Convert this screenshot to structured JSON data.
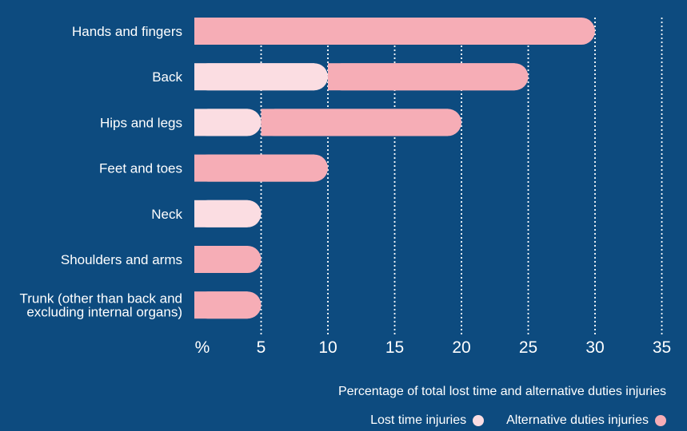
{
  "chart_data": {
    "type": "bar",
    "orientation": "horizontal",
    "stacked": true,
    "categories": [
      "Hands and fingers",
      "Back",
      "Hips and legs",
      "Feet and toes",
      "Neck",
      "Shoulders and arms",
      "Trunk (other than back and excluding internal organs)"
    ],
    "category_lines": [
      [
        "Hands and fingers"
      ],
      [
        "Back"
      ],
      [
        "Hips and legs"
      ],
      [
        "Feet and toes"
      ],
      [
        "Neck"
      ],
      [
        "Shoulders and arms"
      ],
      [
        "Trunk (other than back and",
        "excluding internal organs)"
      ]
    ],
    "series": [
      {
        "name": "Lost time injuries",
        "color": "#fbdde2",
        "values": [
          0,
          10,
          5,
          0,
          5,
          0,
          0
        ]
      },
      {
        "name": "Alternative duties injuries",
        "color": "#f6adb6",
        "values": [
          30,
          15,
          15,
          10,
          0,
          5,
          5
        ]
      }
    ],
    "xticks": [
      "%",
      "5",
      "10",
      "15",
      "20",
      "25",
      "30",
      "35"
    ],
    "xlim": [
      0,
      35
    ],
    "xlabel": "Percentage of total lost time and alternative duties injuries",
    "grid": "vertical dotted",
    "legend_position": "bottom-right"
  }
}
